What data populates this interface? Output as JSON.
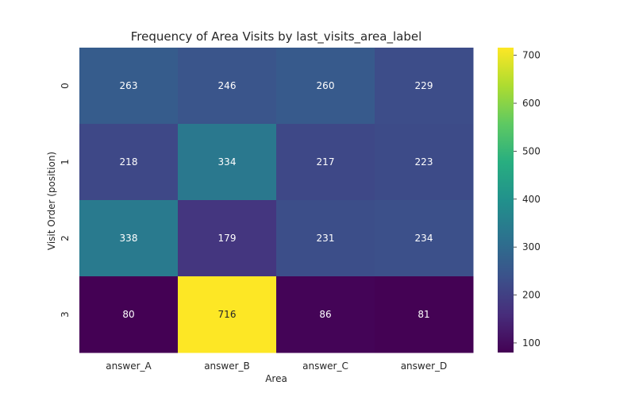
{
  "chart_data": {
    "type": "heatmap",
    "title": "Frequency of Area Visits by last_visits_area_label",
    "xlabel": "Area",
    "ylabel": "Visit Order (position)",
    "x_categories": [
      "answer_A",
      "answer_B",
      "answer_C",
      "answer_D"
    ],
    "y_categories": [
      "0",
      "1",
      "2",
      "3"
    ],
    "values": [
      [
        263,
        246,
        260,
        229
      ],
      [
        218,
        334,
        217,
        223
      ],
      [
        338,
        179,
        231,
        234
      ],
      [
        80,
        716,
        86,
        81
      ]
    ],
    "colormap": "viridis",
    "colorbar": {
      "range": [
        80,
        716
      ],
      "ticks": [
        100,
        200,
        300,
        400,
        500,
        600,
        700
      ]
    }
  }
}
